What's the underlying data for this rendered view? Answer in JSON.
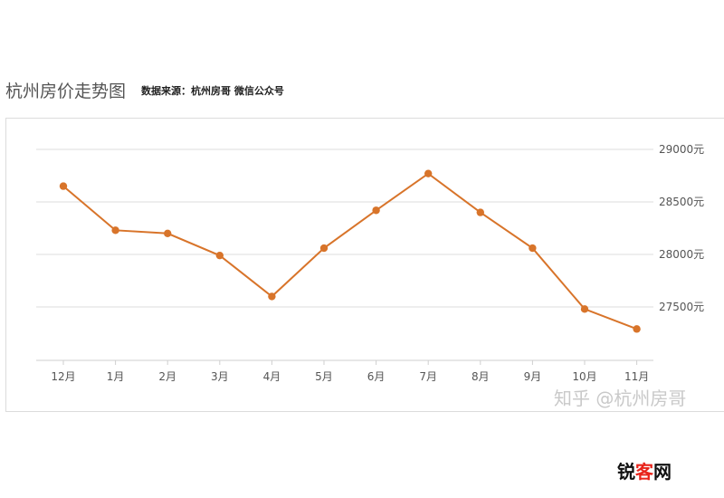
{
  "header": {
    "title": "杭州房价走势图",
    "source": "数据来源：杭州房哥 微信公众号"
  },
  "watermark": "知乎 @杭州房哥",
  "brand": {
    "part1": "锐",
    "part2": "客",
    "part3": "网"
  },
  "colors": {
    "line": "#d8742a",
    "grid": "#dddddd",
    "axis_text": "#555555"
  },
  "chart_data": {
    "type": "line",
    "title": "杭州房价走势图",
    "categories": [
      "12月",
      "1月",
      "2月",
      "3月",
      "4月",
      "5月",
      "6月",
      "7月",
      "8月",
      "9月",
      "10月",
      "11月"
    ],
    "series": [
      {
        "values": [
          28650,
          28230,
          28200,
          27990,
          27600,
          28060,
          28420,
          28770,
          28400,
          28060,
          27480,
          27290
        ]
      }
    ],
    "y_ticks": [
      27500,
      28000,
      28500,
      29000
    ],
    "y_tick_labels": [
      "27500元",
      "28000元",
      "28500元",
      "29000元"
    ],
    "ylim": [
      27000,
      29000
    ],
    "y_axis_position": "right",
    "grid": true
  }
}
